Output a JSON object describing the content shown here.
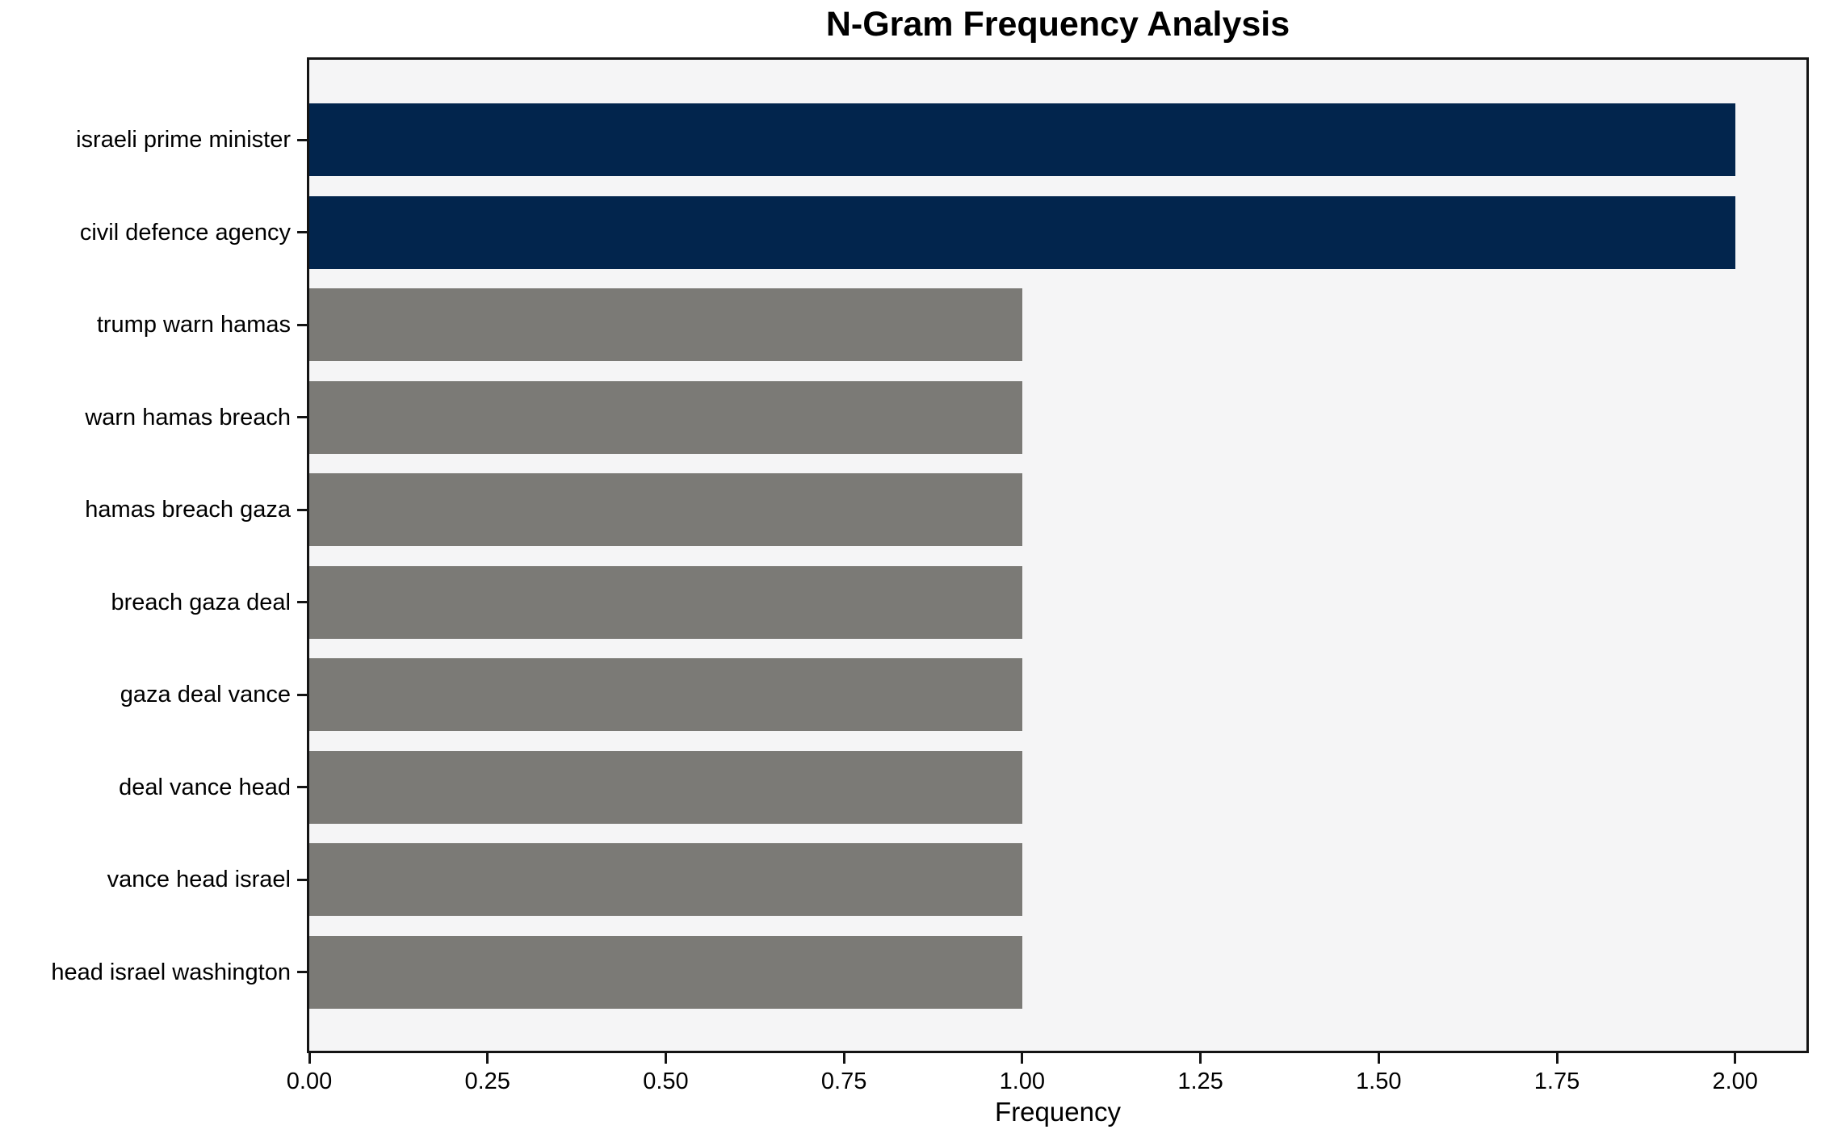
{
  "chart_data": {
    "type": "bar",
    "orientation": "horizontal",
    "title": "N-Gram Frequency Analysis",
    "xlabel": "Frequency",
    "ylabel": "",
    "categories": [
      "israeli prime minister",
      "civil defence agency",
      "trump warn hamas",
      "warn hamas breach",
      "hamas breach gaza",
      "breach gaza deal",
      "gaza deal vance",
      "deal vance head",
      "vance head israel",
      "head israel washington"
    ],
    "values": [
      2,
      2,
      1,
      1,
      1,
      1,
      1,
      1,
      1,
      1
    ],
    "bar_colors": [
      "#02254d",
      "#02254d",
      "#7b7a76",
      "#7b7a76",
      "#7b7a76",
      "#7b7a76",
      "#7b7a76",
      "#7b7a76",
      "#7b7a76",
      "#7b7a76"
    ],
    "xlim": [
      0,
      2.1
    ],
    "xticks": [
      {
        "value": 0.0,
        "label": "0.00"
      },
      {
        "value": 0.25,
        "label": "0.25"
      },
      {
        "value": 0.5,
        "label": "0.50"
      },
      {
        "value": 0.75,
        "label": "0.75"
      },
      {
        "value": 1.0,
        "label": "1.00"
      },
      {
        "value": 1.25,
        "label": "1.25"
      },
      {
        "value": 1.5,
        "label": "1.50"
      },
      {
        "value": 1.75,
        "label": "1.75"
      },
      {
        "value": 2.0,
        "label": "2.00"
      }
    ],
    "grid": false,
    "legend": null,
    "colors": {
      "highlight": "#02254d",
      "muted": "#7b7a76",
      "plot_background": "#f5f5f6",
      "spine": "#141414",
      "text": "#000000",
      "figure_background": "#ffffff"
    }
  }
}
